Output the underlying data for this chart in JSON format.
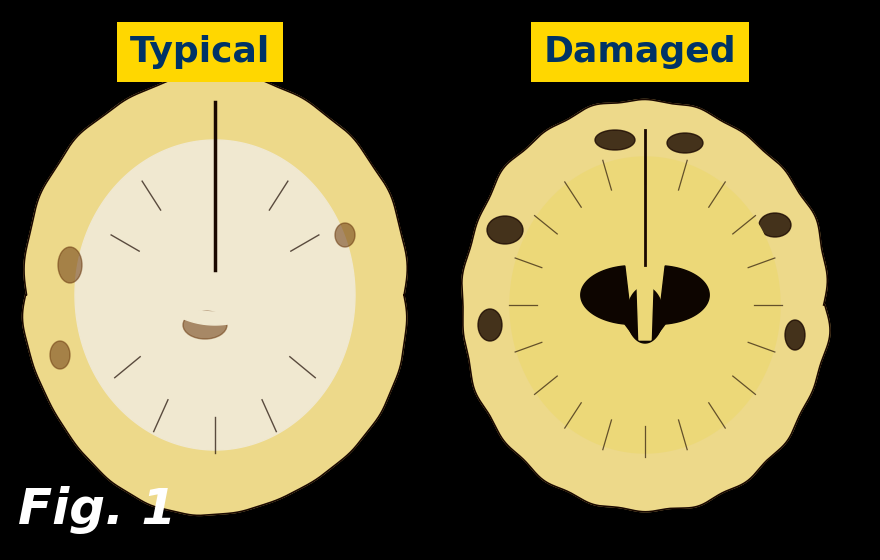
{
  "background_color": "#000000",
  "label_left": "Typical",
  "label_right": "Damaged",
  "label_bg_color": "#FFD700",
  "label_text_color": "#003366",
  "fig_caption": "Fig. 1",
  "fig_caption_color": "#FFFFFF",
  "brain_cream": "#EDD98A",
  "brain_cream_light": "#F5ECC0",
  "brain_cream_dark": "#C8A850",
  "brain_white_matter": "#F0E8D0",
  "sulci_dark": "#1a0800",
  "ventricle_dark": "#0d0500",
  "brown_patch": "#6B3A10"
}
